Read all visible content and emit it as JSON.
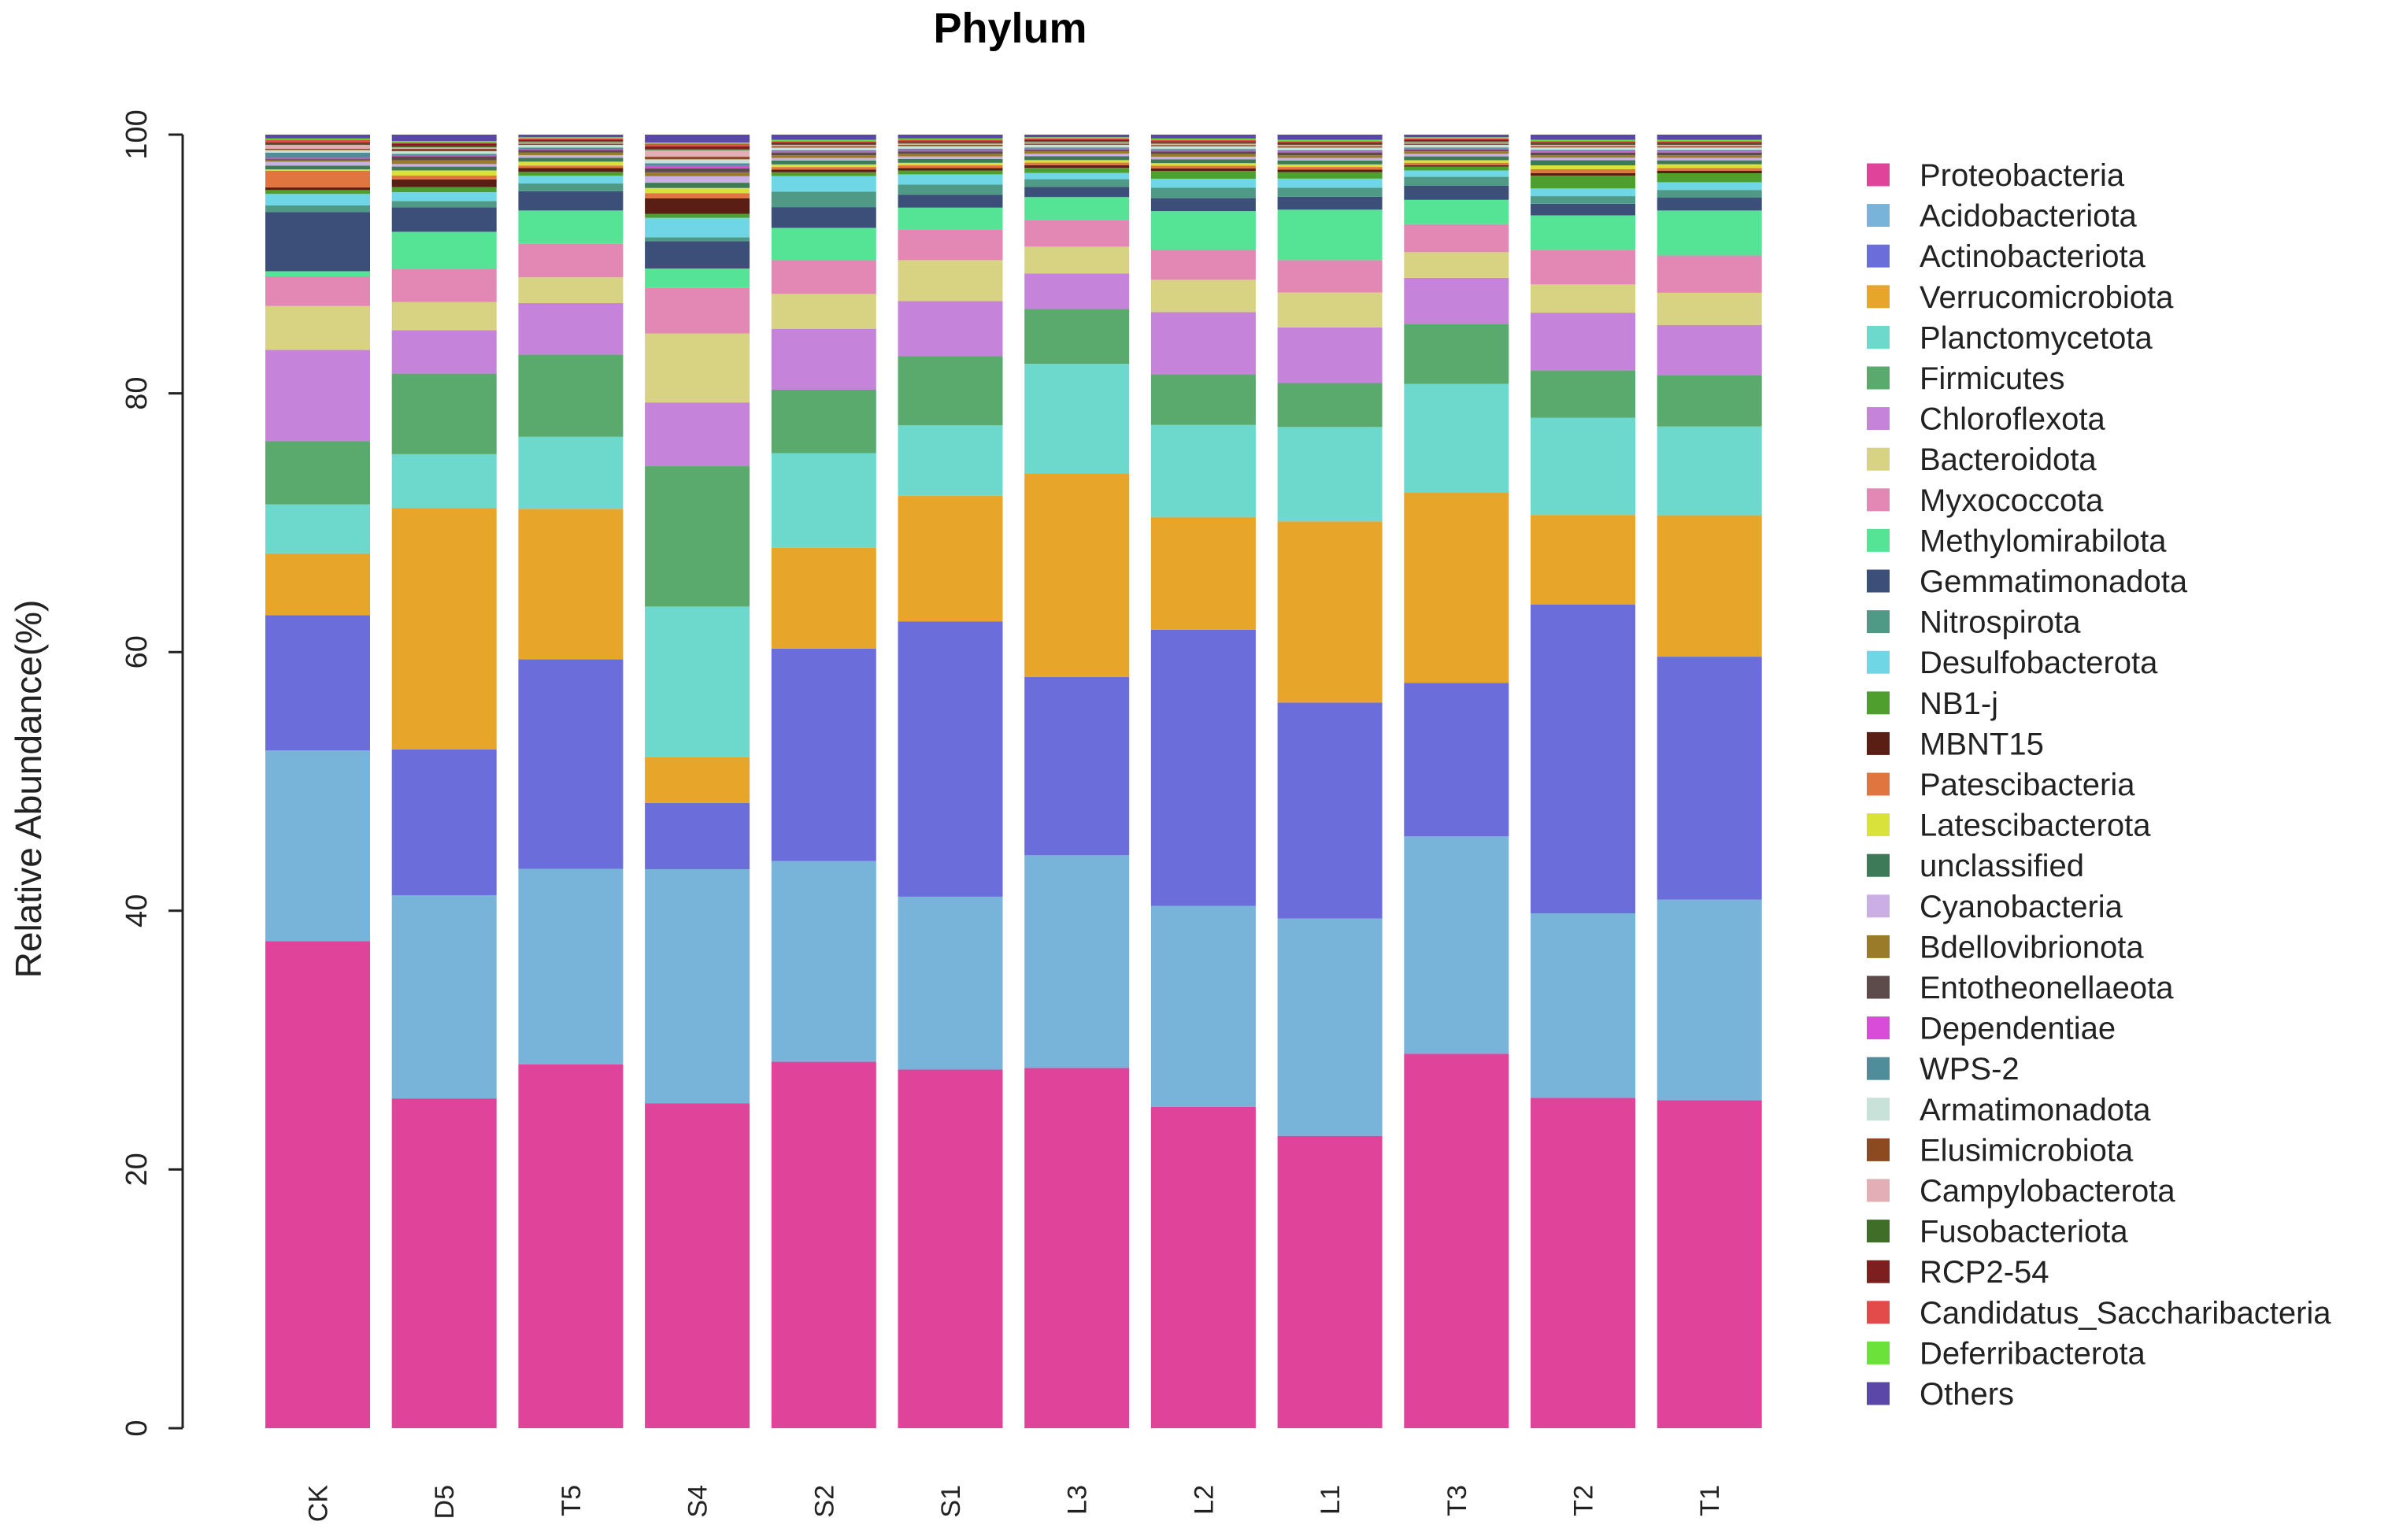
{
  "chart_data": {
    "type": "bar",
    "stacked": true,
    "title": "Phylum",
    "xlabel": "",
    "ylabel": "Relative Abundance(%)",
    "ylim": [
      0,
      100
    ],
    "yticks": [
      "0",
      "20",
      "40",
      "60",
      "80",
      "100"
    ],
    "categories": [
      "CK",
      "D5",
      "T5",
      "S4",
      "S2",
      "S1",
      "L3",
      "L2",
      "L1",
      "T3",
      "T2",
      "T1"
    ],
    "legend_position": "right",
    "series": [
      {
        "name": "Proteobacteria",
        "color": "#e0449a",
        "values": [
          37.8,
          25.8,
          28.3,
          25.0,
          28.3,
          28.0,
          28.3,
          24.8,
          22.6,
          29.3,
          25.8,
          25.5
        ]
      },
      {
        "name": "Acidobacteriota",
        "color": "#78b3da",
        "values": [
          14.8,
          15.9,
          15.2,
          18.0,
          15.5,
          13.5,
          16.7,
          15.5,
          16.8,
          17.0,
          14.4,
          15.6
        ]
      },
      {
        "name": "Actinobacteriota",
        "color": "#6b6ddb",
        "values": [
          10.5,
          11.4,
          16.3,
          5.1,
          16.4,
          21.5,
          14.0,
          21.3,
          16.7,
          12.0,
          24.1,
          18.9
        ]
      },
      {
        "name": "Verrucomicrobiota",
        "color": "#e7a52a",
        "values": [
          4.8,
          18.9,
          11.7,
          3.5,
          7.8,
          9.8,
          16.0,
          8.7,
          14.0,
          14.9,
          7.0,
          11.0
        ]
      },
      {
        "name": "Planctomycetota",
        "color": "#6dd9cc",
        "values": [
          3.8,
          4.2,
          5.6,
          11.6,
          7.3,
          5.5,
          8.6,
          7.1,
          7.3,
          8.5,
          7.6,
          6.9
        ]
      },
      {
        "name": "Firmicutes",
        "color": "#5aaa6e",
        "values": [
          4.9,
          6.3,
          6.4,
          10.8,
          4.9,
          5.4,
          4.3,
          3.9,
          3.4,
          4.7,
          3.7,
          4.0
        ]
      },
      {
        "name": "Chloroflexota",
        "color": "#c583d9",
        "values": [
          7.1,
          3.4,
          4.0,
          4.9,
          4.7,
          4.3,
          2.8,
          4.8,
          4.3,
          3.6,
          4.5,
          3.9
        ]
      },
      {
        "name": "Bacteroidota",
        "color": "#d8d383",
        "values": [
          3.4,
          2.2,
          2.0,
          5.3,
          2.7,
          3.2,
          2.1,
          2.5,
          2.7,
          2.0,
          2.2,
          2.5
        ]
      },
      {
        "name": "Myxococcota",
        "color": "#e387b4",
        "values": [
          2.3,
          2.6,
          2.6,
          3.5,
          2.6,
          2.4,
          2.1,
          2.3,
          2.5,
          2.2,
          2.7,
          2.9
        ]
      },
      {
        "name": "Methylomirabilota",
        "color": "#55e396",
        "values": [
          0.4,
          2.9,
          2.6,
          1.5,
          2.5,
          1.7,
          1.8,
          3.0,
          3.9,
          1.9,
          2.7,
          3.5
        ]
      },
      {
        "name": "Gemmatimonadota",
        "color": "#3c4f79",
        "values": [
          4.6,
          1.9,
          1.5,
          2.1,
          1.6,
          1.0,
          0.8,
          1.0,
          1.0,
          1.1,
          0.9,
          1.0
        ]
      },
      {
        "name": "Nitrospirota",
        "color": "#4e9a86",
        "values": [
          0.5,
          0.5,
          0.6,
          0.3,
          1.2,
          0.8,
          0.6,
          0.8,
          0.7,
          0.7,
          0.6,
          0.6
        ]
      },
      {
        "name": "Desulfobacterota",
        "color": "#6fd6e5",
        "values": [
          0.9,
          0.7,
          0.6,
          1.5,
          1.2,
          0.8,
          0.5,
          0.7,
          0.7,
          0.5,
          0.6,
          0.6
        ]
      },
      {
        "name": "NB1-j",
        "color": "#4f9f2f",
        "values": [
          0.3,
          0.4,
          0.3,
          0.3,
          0.3,
          0.3,
          0.4,
          0.6,
          0.5,
          0.3,
          1.0,
          0.7
        ]
      },
      {
        "name": "MBNT15",
        "color": "#5b1e14",
        "values": [
          0.2,
          0.6,
          0.3,
          1.2,
          0.2,
          0.2,
          0.2,
          0.2,
          0.2,
          0.1,
          0.2,
          0.2
        ]
      },
      {
        "name": "Patescibacteria",
        "color": "#e07540",
        "values": [
          1.3,
          0.3,
          0.2,
          0.4,
          0.2,
          0.2,
          0.2,
          0.2,
          0.2,
          0.2,
          0.3,
          0.2
        ]
      },
      {
        "name": "Latescibacterota",
        "color": "#d9e23a",
        "values": [
          0.1,
          0.4,
          0.3,
          0.4,
          0.2,
          0.2,
          0.2,
          0.2,
          0.2,
          0.2,
          0.3,
          0.3
        ]
      },
      {
        "name": "unclassified",
        "color": "#3c7a58",
        "values": [
          0.3,
          0.3,
          0.3,
          0.4,
          0.3,
          0.3,
          0.3,
          0.3,
          0.3,
          0.3,
          0.4,
          0.3
        ]
      },
      {
        "name": "Cyanobacteria",
        "color": "#cbaee3",
        "values": [
          0.3,
          0.2,
          0.2,
          0.5,
          0.2,
          0.2,
          0.2,
          0.2,
          0.2,
          0.2,
          0.2,
          0.2
        ]
      },
      {
        "name": "Bdellovibrionota",
        "color": "#9a7b2a",
        "values": [
          0.1,
          0.3,
          0.2,
          0.3,
          0.2,
          0.2,
          0.2,
          0.2,
          0.2,
          0.2,
          0.2,
          0.2
        ]
      },
      {
        "name": "Entotheonellaeota",
        "color": "#5d4b4b",
        "values": [
          0.1,
          0.3,
          0.2,
          0.3,
          0.2,
          0.2,
          0.1,
          0.2,
          0.2,
          0.1,
          0.2,
          0.2
        ]
      },
      {
        "name": "Dependentiae",
        "color": "#d94bd9",
        "values": [
          0.1,
          0.1,
          0.1,
          0.2,
          0.1,
          0.1,
          0.1,
          0.1,
          0.1,
          0.1,
          0.1,
          0.1
        ]
      },
      {
        "name": "WPS-2",
        "color": "#4f8d9a",
        "values": [
          0.4,
          0.1,
          0.1,
          0.2,
          0.1,
          0.1,
          0.1,
          0.1,
          0.1,
          0.1,
          0.1,
          0.1
        ]
      },
      {
        "name": "Armatimonadota",
        "color": "#c9e2d9",
        "values": [
          0.2,
          0.2,
          0.2,
          0.3,
          0.2,
          0.2,
          0.2,
          0.2,
          0.2,
          0.2,
          0.2,
          0.2
        ]
      },
      {
        "name": "Elusimicrobiota",
        "color": "#8d4a1e",
        "values": [
          0.1,
          0.2,
          0.1,
          0.2,
          0.1,
          0.1,
          0.1,
          0.1,
          0.1,
          0.1,
          0.1,
          0.1
        ]
      },
      {
        "name": "Campylobacterota",
        "color": "#e3aeb6",
        "values": [
          0.3,
          0.1,
          0.1,
          0.5,
          0.1,
          0.1,
          0.1,
          0.1,
          0.1,
          0.1,
          0.1,
          0.1
        ]
      },
      {
        "name": "Fusobacteriota",
        "color": "#3e6e28",
        "values": [
          0.1,
          0.1,
          0.1,
          0.1,
          0.1,
          0.1,
          0.1,
          0.1,
          0.1,
          0.1,
          0.1,
          0.1
        ]
      },
      {
        "name": "RCP2-54",
        "color": "#7e1e1e",
        "values": [
          0.1,
          0.2,
          0.1,
          0.2,
          0.1,
          0.1,
          0.1,
          0.1,
          0.1,
          0.1,
          0.1,
          0.1
        ]
      },
      {
        "name": "Candidatus_Saccharibacteria",
        "color": "#e34b4b",
        "values": [
          0.2,
          0.1,
          0.1,
          0.2,
          0.1,
          0.1,
          0.1,
          0.1,
          0.1,
          0.1,
          0.1,
          0.1
        ]
      },
      {
        "name": "Deferribacterota",
        "color": "#6ae23a",
        "values": [
          0.1,
          0.1,
          0.1,
          0.1,
          0.1,
          0.1,
          0.1,
          0.1,
          0.1,
          0.1,
          0.1,
          0.1
        ]
      },
      {
        "name": "Others",
        "color": "#5b47a8",
        "values": [
          0.3,
          0.5,
          0.2,
          0.6,
          0.4,
          0.3,
          0.2,
          0.3,
          0.4,
          0.2,
          0.4,
          0.4
        ]
      }
    ]
  }
}
